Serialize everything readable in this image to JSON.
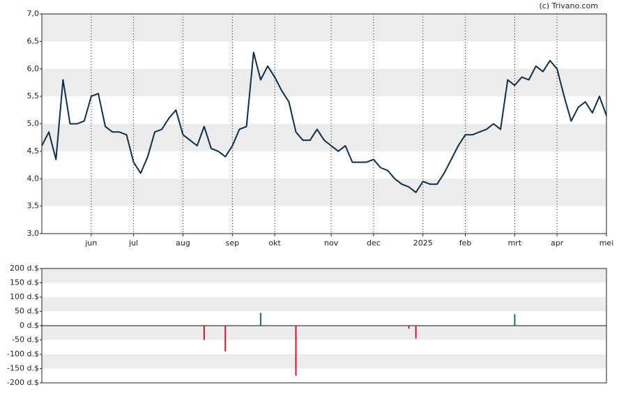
{
  "credit": "(c) Trivano.com",
  "chart_data": [
    {
      "type": "line",
      "color": "#0d2e4a",
      "grid": true,
      "categories": [
        null,
        null,
        null,
        null,
        null,
        null,
        null,
        "jun",
        null,
        null,
        null,
        null,
        null,
        "jul",
        null,
        null,
        null,
        null,
        null,
        null,
        "aug",
        null,
        null,
        null,
        null,
        null,
        null,
        "sep",
        null,
        null,
        null,
        null,
        null,
        "okt",
        null,
        null,
        null,
        null,
        null,
        null,
        null,
        "nov",
        null,
        null,
        null,
        null,
        null,
        "dec",
        null,
        null,
        null,
        null,
        null,
        null,
        "2025",
        null,
        null,
        null,
        null,
        null,
        "feb",
        null,
        null,
        null,
        null,
        null,
        null,
        "mrt",
        null,
        null,
        null,
        null,
        null,
        "apr",
        null,
        null,
        null,
        null,
        null,
        null,
        "mei"
      ],
      "values": [
        4.6,
        4.85,
        4.35,
        5.8,
        5.0,
        5.0,
        5.05,
        5.5,
        5.55,
        4.95,
        4.85,
        4.85,
        4.8,
        4.3,
        4.1,
        4.4,
        4.85,
        4.9,
        5.1,
        5.25,
        4.8,
        4.7,
        4.6,
        4.95,
        4.55,
        4.5,
        4.4,
        4.6,
        4.9,
        4.95,
        6.3,
        5.8,
        6.05,
        5.85,
        5.6,
        5.4,
        4.85,
        4.7,
        4.7,
        4.9,
        4.7,
        4.6,
        4.5,
        4.6,
        4.3,
        4.3,
        4.3,
        4.35,
        4.2,
        4.15,
        4.0,
        3.9,
        3.85,
        3.75,
        3.95,
        3.9,
        3.9,
        4.1,
        4.35,
        4.6,
        4.8,
        4.8,
        4.85,
        4.9,
        5.0,
        4.9,
        5.8,
        5.7,
        5.85,
        5.8,
        6.05,
        5.95,
        6.15,
        6.0,
        5.5,
        5.05,
        5.3,
        5.4,
        5.2,
        5.5,
        5.15
      ],
      "ylim": [
        3,
        7
      ],
      "yticks": [
        {
          "value": 3,
          "label": "3,0"
        },
        {
          "value": 3.5,
          "label": "3,5"
        },
        {
          "value": 4,
          "label": "4,0"
        },
        {
          "value": 4.5,
          "label": "4,5"
        },
        {
          "value": 5,
          "label": "5,0"
        },
        {
          "value": 5.5,
          "label": "5,5"
        },
        {
          "value": 6,
          "label": "6,0"
        },
        {
          "value": 6.5,
          "label": "6,5"
        },
        {
          "value": 7,
          "label": "7,0"
        }
      ]
    },
    {
      "type": "bar",
      "up_color": "#1a7a2e",
      "down_color": "#d0142c",
      "grid": true,
      "values": [
        null,
        null,
        null,
        null,
        null,
        null,
        null,
        null,
        null,
        null,
        null,
        null,
        null,
        null,
        null,
        null,
        null,
        null,
        null,
        null,
        null,
        null,
        null,
        -50,
        null,
        null,
        -90,
        null,
        null,
        null,
        null,
        45,
        null,
        null,
        null,
        null,
        -175,
        null,
        null,
        null,
        null,
        null,
        null,
        null,
        null,
        null,
        null,
        null,
        null,
        null,
        null,
        null,
        -10,
        -45,
        null,
        null,
        null,
        null,
        null,
        null,
        null,
        null,
        null,
        null,
        null,
        null,
        null,
        40,
        null,
        null,
        null,
        null,
        null,
        null,
        null,
        null,
        null,
        null,
        null,
        null,
        null
      ],
      "ylim": [
        -200,
        200
      ],
      "yticks": [
        {
          "value": -200,
          "label": "-200 d.$"
        },
        {
          "value": -150,
          "label": "-150 d.$"
        },
        {
          "value": -100,
          "label": "-100 d.$"
        },
        {
          "value": -50,
          "label": "-50 d.$"
        },
        {
          "value": 0,
          "label": "0 d.$"
        },
        {
          "value": 50,
          "label": "50 d.$"
        },
        {
          "value": 100,
          "label": "100 d.$"
        },
        {
          "value": 150,
          "label": "150 d.$"
        },
        {
          "value": 200,
          "label": "200 d.$"
        }
      ]
    }
  ]
}
